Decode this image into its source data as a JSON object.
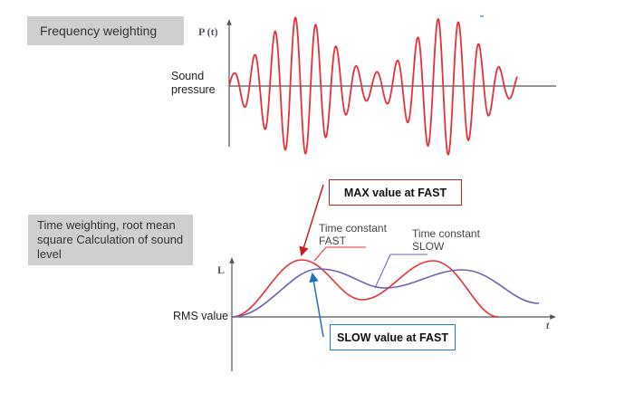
{
  "sections": {
    "frequency_weighting": {
      "title": "Frequency weighting"
    },
    "time_weighting": {
      "title": "Time weighting, root mean square Calculation of sound level"
    }
  },
  "upper_chart": {
    "y_axis_label": "P (t)",
    "y_axis_caption_line1": "Sound",
    "y_axis_caption_line2": "pressure",
    "curve_color": "#e8303a"
  },
  "lower_chart": {
    "y_axis_label": "L",
    "x_axis_label": "t",
    "baseline_label": "RMS value",
    "fast_label_line1": "Time constant",
    "fast_label_line2": "FAST",
    "slow_label_line1": "Time constant",
    "slow_label_line2": "SLOW",
    "fast_color": "#e8303a",
    "slow_color": "#7060b0"
  },
  "callouts": {
    "max": {
      "text": "MAX value at FAST",
      "border_color": "#c81e1e"
    },
    "slow": {
      "text": "SLOW value at FAST",
      "border_color": "#2a7bc4"
    }
  },
  "chart_data": [
    {
      "type": "line",
      "title": "Frequency weighting",
      "ylabel": "P (t)",
      "xlabel": "",
      "description": "Sound pressure waveform: two amplitude-modulated sinusoidal bursts",
      "series": [
        {
          "name": "Sound pressure",
          "color": "#e8303a"
        }
      ],
      "grid": false
    },
    {
      "type": "line",
      "title": "Time weighting, root mean square Calculation of sound level",
      "ylabel": "L",
      "xlabel": "t",
      "series": [
        {
          "name": "Time constant FAST",
          "color": "#e8303a"
        },
        {
          "name": "Time constant SLOW",
          "color": "#7060b0"
        }
      ],
      "annotations": [
        "MAX value at FAST",
        "SLOW value at FAST",
        "RMS value"
      ],
      "grid": false
    }
  ]
}
